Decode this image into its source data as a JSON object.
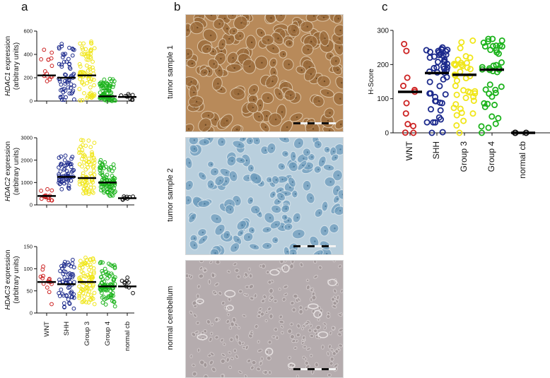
{
  "panel_labels": {
    "a": "a",
    "b": "b",
    "c": "c"
  },
  "colors": {
    "WNT": "#cc2222",
    "SHH": "#1c2a8c",
    "Group 3": "#f0e61a",
    "Group 4": "#1cb31c",
    "normal cb": "#111111"
  },
  "micrographs": [
    {
      "label": "tumor sample 1",
      "stain": "brown-positive"
    },
    {
      "label": "tumor sample 2",
      "stain": "blue-negative"
    },
    {
      "label": "normal cerebellum",
      "stain": "grey-background"
    }
  ],
  "chart_data": [
    {
      "type": "scatter",
      "panel": "a",
      "ylabel_gene": "HDAC1",
      "ylabel_rest": " expression",
      "ylabel_units": "(arbitrary units)",
      "categories": [
        "WNT",
        "SHH",
        "Group 3",
        "Group 4",
        "normal cb"
      ],
      "show_category_labels": false,
      "ylim": [
        0,
        600
      ],
      "yticks": [
        0,
        200,
        400,
        600
      ],
      "series": [
        {
          "category": "WNT",
          "median": 220,
          "n": 15,
          "min": 170,
          "max": 440
        },
        {
          "category": "SHH",
          "median": 200,
          "n": 60,
          "min": 10,
          "max": 490
        },
        {
          "category": "Group 3",
          "median": 220,
          "n": 80,
          "min": 5,
          "max": 510
        },
        {
          "category": "Group 4",
          "median": 40,
          "n": 85,
          "min": 0,
          "max": 190
        },
        {
          "category": "normal cb",
          "median": 35,
          "n": 9,
          "min": 10,
          "max": 60
        }
      ]
    },
    {
      "type": "scatter",
      "panel": "a",
      "ylabel_gene": "HDAC2",
      "ylabel_rest": " expression",
      "ylabel_units": "(arbitrary units)",
      "categories": [
        "WNT",
        "SHH",
        "Group 3",
        "Group 4",
        "normal cb"
      ],
      "show_category_labels": false,
      "ylim": [
        0,
        3000
      ],
      "yticks": [
        0,
        1000,
        2000,
        3000
      ],
      "series": [
        {
          "category": "WNT",
          "median": 400,
          "n": 15,
          "min": 200,
          "max": 700
        },
        {
          "category": "SHH",
          "median": 1250,
          "n": 60,
          "min": 700,
          "max": 2200
        },
        {
          "category": "Group 3",
          "median": 1200,
          "n": 80,
          "min": 500,
          "max": 2900
        },
        {
          "category": "Group 4",
          "median": 1000,
          "n": 85,
          "min": 400,
          "max": 2000
        },
        {
          "category": "normal cb",
          "median": 300,
          "n": 9,
          "min": 230,
          "max": 380
        }
      ]
    },
    {
      "type": "scatter",
      "panel": "a",
      "ylabel_gene": "HDAC3",
      "ylabel_rest": " expression",
      "ylabel_units": "(arbitrary units)",
      "categories": [
        "WNT",
        "SHH",
        "Group 3",
        "Group 4",
        "normal cb"
      ],
      "show_category_labels": true,
      "ylim": [
        0,
        150
      ],
      "yticks": [
        0,
        50,
        100,
        150
      ],
      "series": [
        {
          "category": "WNT",
          "median": 70,
          "n": 15,
          "min": 20,
          "max": 105
        },
        {
          "category": "SHH",
          "median": 65,
          "n": 60,
          "min": 10,
          "max": 120
        },
        {
          "category": "Group 3",
          "median": 70,
          "n": 80,
          "min": 20,
          "max": 125
        },
        {
          "category": "Group 4",
          "median": 60,
          "n": 85,
          "min": 15,
          "max": 115
        },
        {
          "category": "normal cb",
          "median": 60,
          "n": 9,
          "min": 45,
          "max": 80
        }
      ]
    },
    {
      "type": "scatter",
      "panel": "c",
      "ylabel": "H-Score",
      "categories": [
        "WNT",
        "SHH",
        "Group 3",
        "Group 4",
        "normal cb"
      ],
      "show_category_labels": true,
      "ylim": [
        0,
        300
      ],
      "yticks": [
        0,
        100,
        200,
        300
      ],
      "series": [
        {
          "category": "WNT",
          "median": 120,
          "n": 12,
          "min": 0,
          "max": 260
        },
        {
          "category": "SHH",
          "median": 175,
          "n": 50,
          "min": 0,
          "max": 250
        },
        {
          "category": "Group 3",
          "median": 170,
          "n": 40,
          "min": 0,
          "max": 270
        },
        {
          "category": "Group 4",
          "median": 185,
          "n": 42,
          "min": 0,
          "max": 275
        },
        {
          "category": "normal cb",
          "median": 0,
          "n": 3,
          "min": 0,
          "max": 0
        }
      ]
    }
  ]
}
